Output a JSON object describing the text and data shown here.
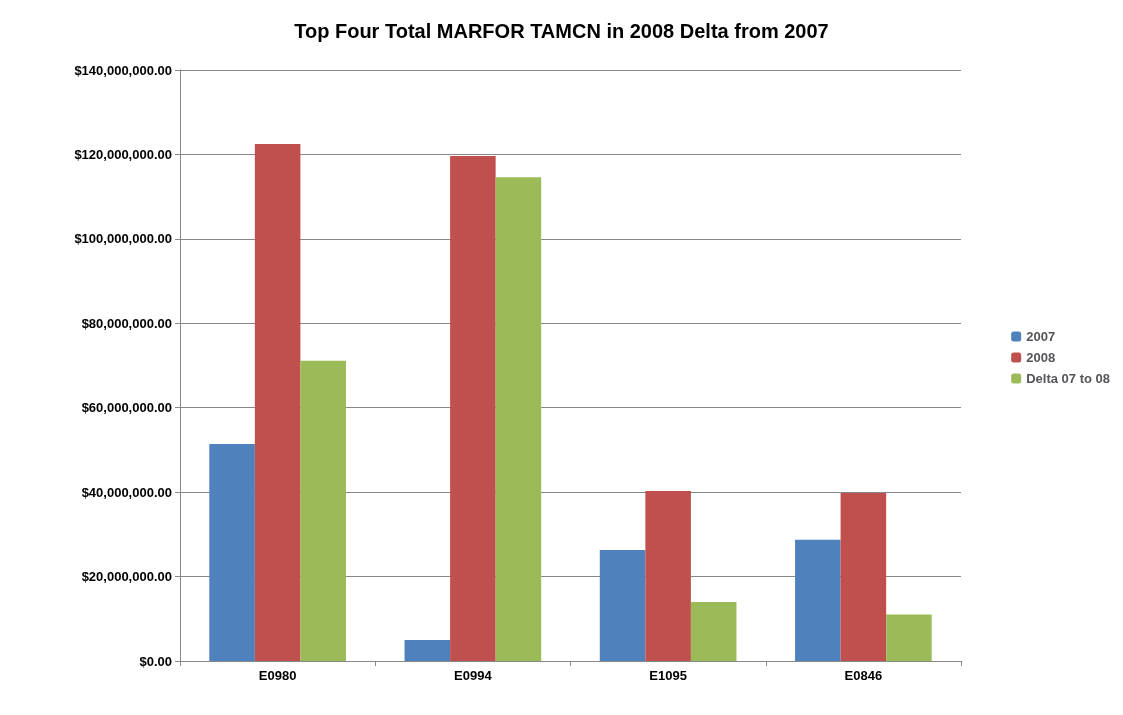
{
  "chart_data": {
    "type": "bar",
    "title": "Top Four Total MARFOR TAMCN in 2008 Delta from 2007",
    "categories": [
      "E0980",
      "E0994",
      "E1095",
      "E0846"
    ],
    "series": [
      {
        "name": "2007",
        "color": "#4f81bd",
        "values": [
          51400000,
          5000000,
          26300000,
          28700000
        ]
      },
      {
        "name": "2008",
        "color": "#c0504d",
        "values": [
          122500000,
          119600000,
          40300000,
          39800000
        ]
      },
      {
        "name": "Delta 07 to 08",
        "color": "#9bbb59",
        "values": [
          71100000,
          114600000,
          14000000,
          11000000
        ]
      }
    ],
    "ylim": [
      0,
      140000000
    ],
    "yticks": [
      {
        "value": 0,
        "label": "$0.00"
      },
      {
        "value": 20000000,
        "label": "$20,000,000.00"
      },
      {
        "value": 40000000,
        "label": "$40,000,000.00"
      },
      {
        "value": 60000000,
        "label": "$60,000,000.00"
      },
      {
        "value": 80000000,
        "label": "$80,000,000.00"
      },
      {
        "value": 100000000,
        "label": "$100,000,000.00"
      },
      {
        "value": 120000000,
        "label": "$120,000,000.00"
      },
      {
        "value": 140000000,
        "label": "$140,000,000.00"
      }
    ],
    "grid": true,
    "legend": "right"
  }
}
